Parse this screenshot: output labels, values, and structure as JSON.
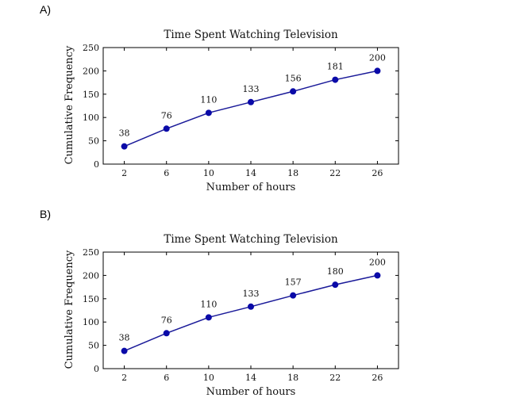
{
  "panels": [
    {
      "label": "A)",
      "chart_data": {
        "type": "line",
        "title": "Time Spent Watching Television",
        "xlabel": "Number of hours",
        "ylabel": "Cumulative Frequency",
        "x": [
          2,
          6,
          10,
          14,
          18,
          22,
          26
        ],
        "values": [
          38,
          76,
          110,
          133,
          156,
          181,
          200
        ],
        "x_ticks": [
          2,
          6,
          10,
          14,
          18,
          22,
          26
        ],
        "y_ticks": [
          0,
          50,
          100,
          150,
          200,
          250
        ],
        "xlim": [
          0,
          28
        ],
        "ylim": [
          0,
          250
        ],
        "grid": false,
        "line_color": "#1a1a99",
        "marker_color": "#0a0aa8"
      }
    },
    {
      "label": "B)",
      "chart_data": {
        "type": "line",
        "title": "Time Spent Watching Television",
        "xlabel": "Number of hours",
        "ylabel": "Cumulative Frequency",
        "x": [
          2,
          6,
          10,
          14,
          18,
          22,
          26
        ],
        "values": [
          38,
          76,
          110,
          133,
          157,
          180,
          200
        ],
        "x_ticks": [
          2,
          6,
          10,
          14,
          18,
          22,
          26
        ],
        "y_ticks": [
          0,
          50,
          100,
          150,
          200,
          250
        ],
        "xlim": [
          0,
          28
        ],
        "ylim": [
          0,
          250
        ],
        "grid": false,
        "line_color": "#1a1a99",
        "marker_color": "#0a0aa8"
      }
    }
  ]
}
